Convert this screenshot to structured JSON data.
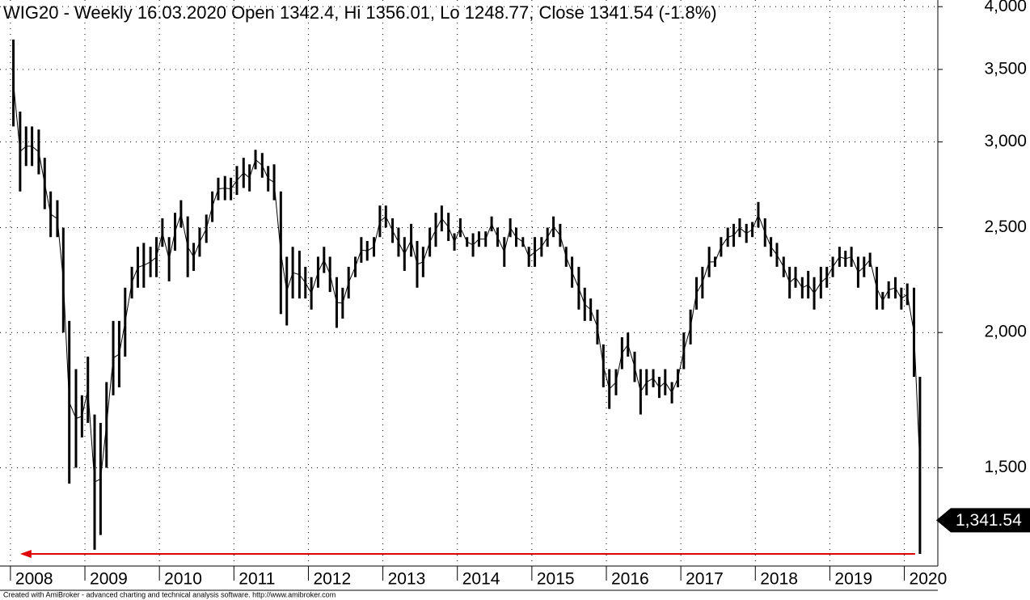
{
  "chart_data": {
    "type": "hilo",
    "title": "WIG20 - Weekly 16.03.2020 Open 1342.4, Hi 1356.01, Lo 1248.77, Close 1341.54 (-1.8%)",
    "footer": "Created with AmiBroker - advanced charting and technical analysis software. http://www.amibroker.com",
    "color": "#000000",
    "annotation_color": "#e00000",
    "log_scale": true,
    "grid": true,
    "xlim": [
      2007.86,
      2020.45
    ],
    "xticks": [
      2008,
      2009,
      2010,
      2011,
      2012,
      2013,
      2014,
      2015,
      2016,
      2017,
      2018,
      2019,
      2020
    ],
    "ylim": [
      1217,
      4057
    ],
    "yticks": [
      {
        "value": 1500,
        "label": "1,500"
      },
      {
        "value": 2000,
        "label": "2,000"
      },
      {
        "value": 2500,
        "label": "2,500"
      },
      {
        "value": 3000,
        "label": "3,000"
      },
      {
        "value": 3500,
        "label": "3,500"
      },
      {
        "value": 4000,
        "label": "4,000"
      }
    ],
    "last_price": {
      "value": 1341.54,
      "label": "1,341.54"
    },
    "x": [
      2008.04,
      2008.13,
      2008.21,
      2008.29,
      2008.38,
      2008.46,
      2008.54,
      2008.63,
      2008.71,
      2008.79,
      2008.88,
      2008.96,
      2009.04,
      2009.13,
      2009.21,
      2009.29,
      2009.38,
      2009.46,
      2009.54,
      2009.63,
      2009.71,
      2009.79,
      2009.88,
      2009.96,
      2010.04,
      2010.13,
      2010.21,
      2010.29,
      2010.38,
      2010.46,
      2010.54,
      2010.63,
      2010.71,
      2010.79,
      2010.88,
      2010.96,
      2011.04,
      2011.13,
      2011.21,
      2011.29,
      2011.38,
      2011.46,
      2011.54,
      2011.63,
      2011.71,
      2011.79,
      2011.88,
      2011.96,
      2012.04,
      2012.13,
      2012.21,
      2012.29,
      2012.38,
      2012.46,
      2012.54,
      2012.63,
      2012.71,
      2012.79,
      2012.88,
      2012.96,
      2013.04,
      2013.13,
      2013.21,
      2013.29,
      2013.38,
      2013.46,
      2013.54,
      2013.63,
      2013.71,
      2013.79,
      2013.88,
      2013.96,
      2014.04,
      2014.13,
      2014.21,
      2014.29,
      2014.38,
      2014.46,
      2014.54,
      2014.63,
      2014.71,
      2014.79,
      2014.88,
      2014.96,
      2015.04,
      2015.13,
      2015.21,
      2015.29,
      2015.38,
      2015.46,
      2015.54,
      2015.63,
      2015.71,
      2015.79,
      2015.88,
      2015.96,
      2016.04,
      2016.13,
      2016.21,
      2016.29,
      2016.38,
      2016.46,
      2016.54,
      2016.63,
      2016.71,
      2016.79,
      2016.88,
      2016.96,
      2017.04,
      2017.13,
      2017.21,
      2017.29,
      2017.38,
      2017.46,
      2017.54,
      2017.63,
      2017.71,
      2017.79,
      2017.88,
      2017.96,
      2018.04,
      2018.13,
      2018.21,
      2018.29,
      2018.38,
      2018.46,
      2018.54,
      2018.63,
      2018.71,
      2018.79,
      2018.88,
      2018.96,
      2019.04,
      2019.13,
      2019.21,
      2019.29,
      2019.38,
      2019.46,
      2019.54,
      2019.63,
      2019.71,
      2019.79,
      2019.88,
      2019.96,
      2020.04,
      2020.13,
      2020.21
    ],
    "high": [
      3730,
      3200,
      3100,
      3100,
      3080,
      2900,
      2700,
      2650,
      2500,
      2050,
      1850,
      1750,
      1900,
      1680,
      1650,
      1800,
      2050,
      2050,
      2200,
      2300,
      2400,
      2420,
      2400,
      2450,
      2550,
      2450,
      2580,
      2650,
      2560,
      2420,
      2500,
      2570,
      2700,
      2780,
      2790,
      2780,
      2850,
      2900,
      2860,
      2950,
      2930,
      2850,
      2860,
      2700,
      2350,
      2400,
      2380,
      2300,
      2250,
      2350,
      2400,
      2350,
      2250,
      2200,
      2300,
      2350,
      2450,
      2430,
      2450,
      2620,
      2620,
      2550,
      2500,
      2450,
      2520,
      2430,
      2400,
      2500,
      2580,
      2620,
      2580,
      2470,
      2550,
      2450,
      2470,
      2480,
      2480,
      2560,
      2500,
      2450,
      2550,
      2500,
      2450,
      2400,
      2450,
      2450,
      2500,
      2560,
      2520,
      2400,
      2350,
      2300,
      2200,
      2150,
      2100,
      1950,
      1850,
      1850,
      1980,
      2000,
      1920,
      1850,
      1850,
      1850,
      1820,
      1850,
      1800,
      1850,
      2000,
      2100,
      2250,
      2300,
      2400,
      2350,
      2450,
      2500,
      2520,
      2550,
      2520,
      2530,
      2640,
      2550,
      2450,
      2420,
      2350,
      2300,
      2300,
      2250,
      2280,
      2250,
      2300,
      2300,
      2350,
      2400,
      2380,
      2400,
      2350,
      2350,
      2370,
      2300,
      2180,
      2230,
      2250,
      2200,
      2220,
      2200,
      1820
    ],
    "low": [
      3100,
      2700,
      2850,
      2850,
      2800,
      2600,
      2450,
      2450,
      2000,
      1450,
      1500,
      1600,
      1650,
      1260,
      1300,
      1500,
      1750,
      1780,
      1900,
      2150,
      2200,
      2200,
      2250,
      2250,
      2400,
      2230,
      2380,
      2500,
      2250,
      2280,
      2350,
      2420,
      2530,
      2650,
      2650,
      2650,
      2680,
      2720,
      2700,
      2830,
      2780,
      2700,
      2650,
      2080,
      2030,
      2150,
      2150,
      2150,
      2100,
      2200,
      2270,
      2180,
      2020,
      2060,
      2150,
      2250,
      2320,
      2330,
      2350,
      2450,
      2500,
      2420,
      2350,
      2280,
      2350,
      2200,
      2250,
      2350,
      2400,
      2480,
      2430,
      2380,
      2450,
      2400,
      2350,
      2400,
      2400,
      2480,
      2400,
      2300,
      2450,
      2400,
      2400,
      2300,
      2300,
      2350,
      2400,
      2450,
      2400,
      2300,
      2200,
      2100,
      2050,
      2050,
      1950,
      1780,
      1700,
      1750,
      1850,
      1900,
      1800,
      1680,
      1750,
      1780,
      1740,
      1750,
      1720,
      1780,
      1850,
      1950,
      2100,
      2150,
      2250,
      2300,
      2350,
      2400,
      2400,
      2450,
      2420,
      2450,
      2500,
      2400,
      2350,
      2300,
      2250,
      2150,
      2200,
      2150,
      2150,
      2100,
      2150,
      2200,
      2250,
      2300,
      2300,
      2300,
      2200,
      2250,
      2300,
      2100,
      2100,
      2150,
      2150,
      2100,
      2120,
      1820,
      1248.77
    ]
  }
}
